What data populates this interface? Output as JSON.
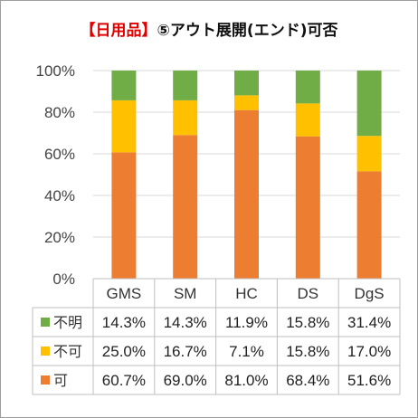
{
  "title": {
    "prefix": "【日用品】",
    "main": "⑤アウト展開(エンド)可否"
  },
  "colors": {
    "title_prefix": "#e00000",
    "grid": "#d9d9d9",
    "table_border": "#bfbfbf"
  },
  "chart_data": {
    "type": "bar",
    "stacked": true,
    "categories": [
      "GMS",
      "SM",
      "HC",
      "DS",
      "DgS"
    ],
    "series": [
      {
        "name": "可",
        "color": "#ed7d31",
        "values": [
          60.7,
          69.0,
          81.0,
          68.4,
          51.6
        ]
      },
      {
        "name": "不可",
        "color": "#ffc000",
        "values": [
          25.0,
          16.7,
          7.1,
          15.8,
          17.0
        ]
      },
      {
        "name": "不明",
        "color": "#70ad47",
        "values": [
          14.3,
          14.3,
          11.9,
          15.8,
          31.4
        ]
      }
    ],
    "table_rows": [
      {
        "name": "不明",
        "color": "#70ad47",
        "labels": [
          "14.3%",
          "14.3%",
          "11.9%",
          "15.8%",
          "31.4%"
        ]
      },
      {
        "name": "不可",
        "color": "#ffc000",
        "labels": [
          "25.0%",
          "16.7%",
          "7.1%",
          "15.8%",
          "17.0%"
        ]
      },
      {
        "name": "可",
        "color": "#ed7d31",
        "labels": [
          "60.7%",
          "69.0%",
          "81.0%",
          "68.4%",
          "51.6%"
        ]
      }
    ],
    "yticks": [
      "0%",
      "20%",
      "40%",
      "60%",
      "80%",
      "100%"
    ],
    "ylim": [
      0,
      100
    ],
    "grid": true,
    "legend": "data-table"
  }
}
